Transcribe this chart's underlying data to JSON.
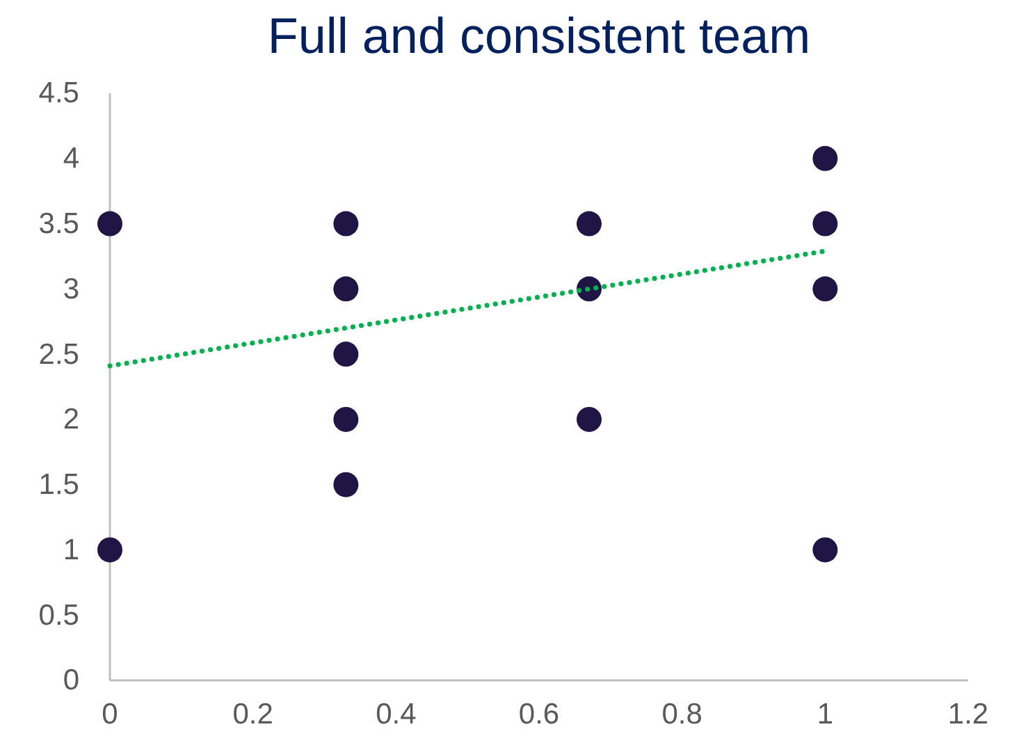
{
  "chart_data": {
    "type": "scatter",
    "title": "Full and consistent team",
    "xlim": [
      0,
      1.2
    ],
    "xticks": [
      0,
      0.2,
      0.4,
      0.6,
      0.8,
      1,
      1.2
    ],
    "ylim": [
      0,
      4.5
    ],
    "yticks": [
      0,
      0.5,
      1,
      1.5,
      2,
      2.5,
      3,
      3.5,
      4,
      4.5
    ],
    "marker": "circle",
    "series": [
      {
        "color": "#1f1646",
        "x": [
          0,
          0,
          0.33,
          0.33,
          0.33,
          0.33,
          0.33,
          0.67,
          0.67,
          0.67,
          1,
          1,
          1,
          1
        ],
        "values": [
          3.5,
          1,
          3.5,
          3,
          2.5,
          2,
          1.5,
          3.5,
          3,
          2,
          4,
          3.5,
          3,
          1
        ]
      },
      {
        "type": "line",
        "color": "#00b050",
        "line_style": "dotted",
        "marker": "none",
        "x": [
          0,
          1
        ],
        "values": [
          2.41,
          3.29
        ]
      }
    ]
  }
}
